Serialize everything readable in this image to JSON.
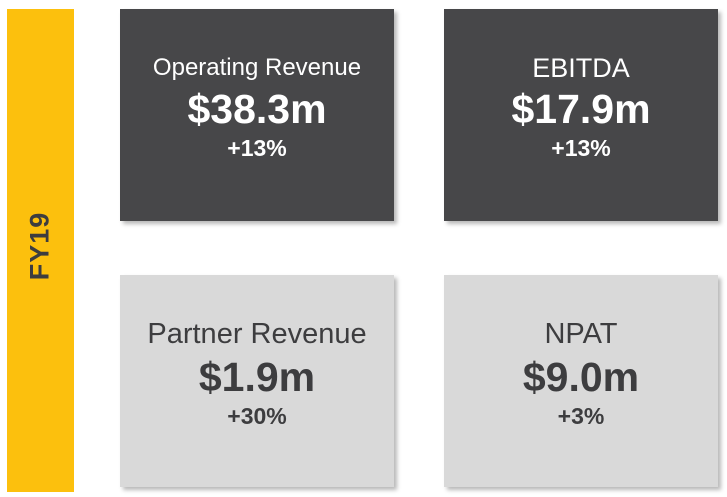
{
  "sidebar": {
    "label": "FY19",
    "color": "#fcc00d"
  },
  "cards": [
    {
      "title": "Operating Revenue",
      "value": "$38.3m",
      "change": "+13%",
      "theme": "dark"
    },
    {
      "title": "EBITDA",
      "value": "$17.9m",
      "change": "+13%",
      "theme": "dark"
    },
    {
      "title": "Partner Revenue",
      "value": "$1.9m",
      "change": "+30%",
      "theme": "light"
    },
    {
      "title": "NPAT",
      "value": "$9.0m",
      "change": "+3%",
      "theme": "light"
    }
  ],
  "colors": {
    "dark_card": "#474749",
    "light_card": "#d9d9d9",
    "dark_text": "#3d3d3f",
    "light_text": "#ffffff"
  }
}
